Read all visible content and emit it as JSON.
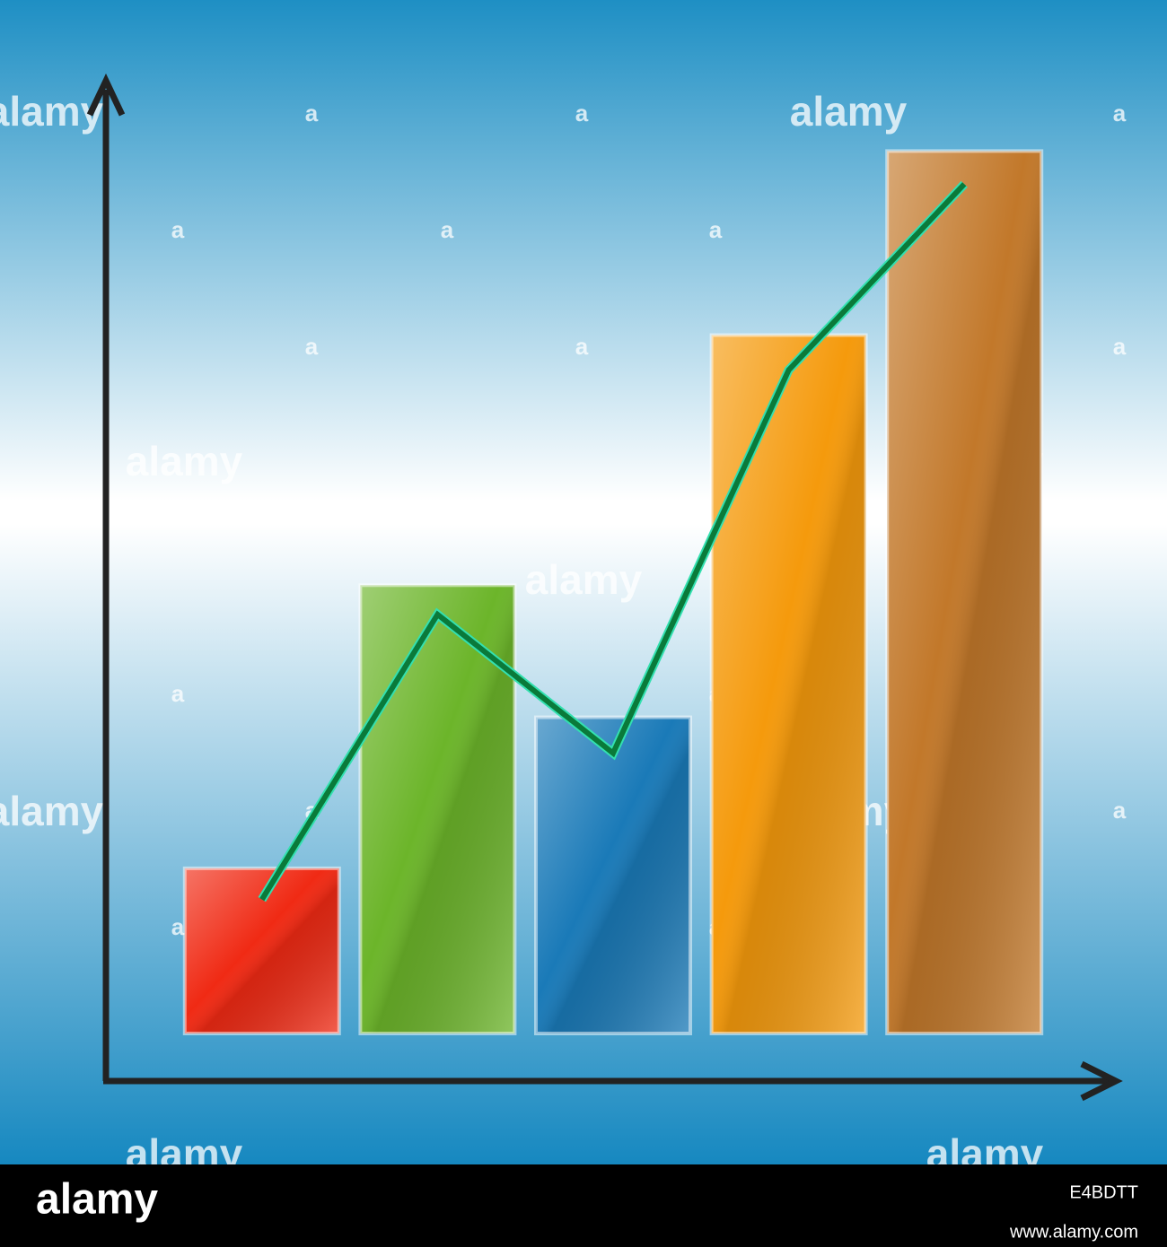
{
  "chart_data": {
    "type": "bar-line",
    "categories": [
      null,
      null,
      null,
      null,
      null
    ],
    "values": [
      17.5,
      47.5,
      33.5,
      74,
      93.5
    ],
    "colors": [
      "#f02a14",
      "#6cb52a",
      "#1a7ab8",
      "#f59a0c",
      "#c2782a"
    ],
    "line": {
      "color": "#0a7a3a",
      "values": [
        14.2,
        44.4,
        29.7,
        70.3,
        90
      ]
    },
    "ylim": [
      0,
      100
    ]
  },
  "watermarks": {
    "large": [
      "alamy",
      "alamy",
      "alamy",
      "alamy",
      "alamy",
      "alamy",
      "alamy",
      "alamy",
      "alamy"
    ],
    "small": [
      "a",
      "a",
      "a",
      "a",
      "a",
      "a",
      "a",
      "a",
      "a",
      "a",
      "a",
      "a",
      "a",
      "a",
      "a",
      "a",
      "a",
      "a",
      "a",
      "a"
    ]
  },
  "footer": {
    "logo": "alamy",
    "image_id": "E4BDTT",
    "url": "www.alamy.com"
  }
}
